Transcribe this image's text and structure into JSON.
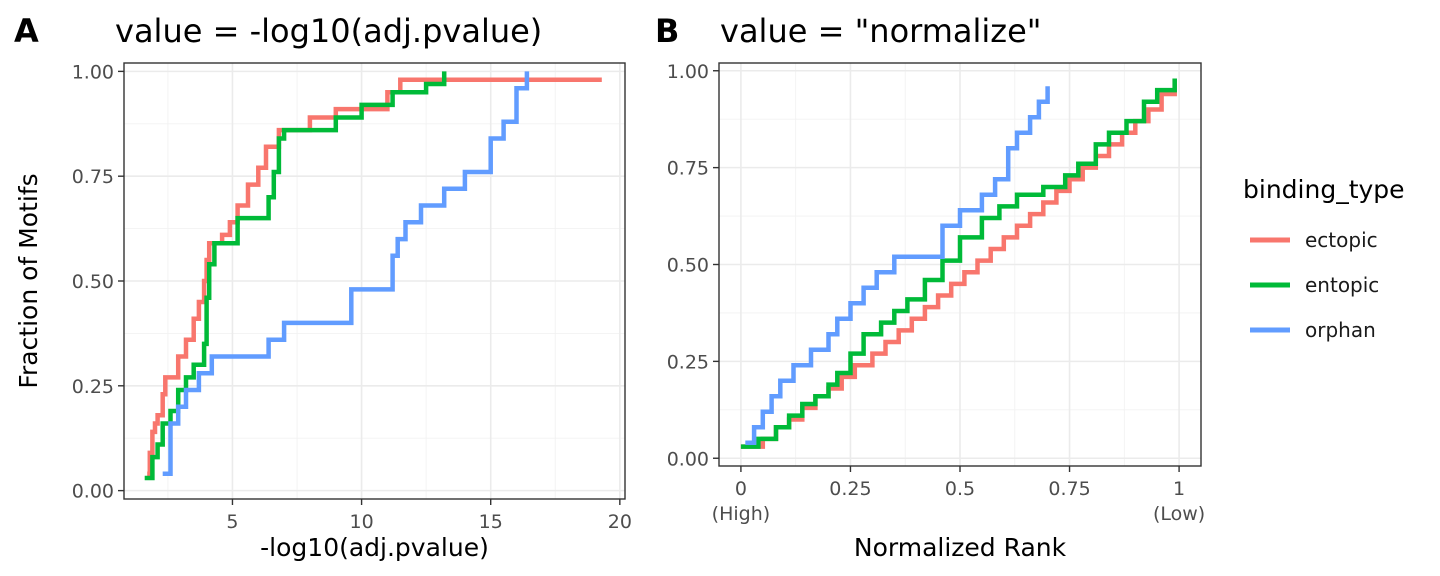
{
  "colors": {
    "ectopic": "#F8766D",
    "entopic": "#00BA38",
    "orphan": "#619CFF"
  },
  "legend": {
    "title": "binding_type",
    "items": [
      {
        "label": "ectopic",
        "color": "#F8766D"
      },
      {
        "label": "entopic",
        "color": "#00BA38"
      },
      {
        "label": "orphan",
        "color": "#619CFF"
      }
    ]
  },
  "chart_data": [
    {
      "type": "line",
      "tag": "A",
      "title": "value = -log10(adj.pvalue)",
      "xlabel": "-log10(adj.pvalue)",
      "ylabel": "Fraction of Motifs",
      "xlim": [
        0.8,
        20.2
      ],
      "ylim": [
        -0.02,
        1.02
      ],
      "x_ticks": [
        5,
        10,
        15,
        20
      ],
      "x_tick_labels": [
        "5",
        "10",
        "15",
        "20"
      ],
      "y_ticks": [
        0,
        0.25,
        0.5,
        0.75,
        1
      ],
      "y_tick_labels": [
        "0.00",
        "0.25",
        "0.50",
        "0.75",
        "1.00"
      ],
      "step": true,
      "grid": true,
      "series": [
        {
          "name": "ectopic",
          "x": [
            1.7,
            1.8,
            1.9,
            2.0,
            2.1,
            2.3,
            2.4,
            2.6,
            2.9,
            3.2,
            3.5,
            3.7,
            3.9,
            4.0,
            4.1,
            4.3,
            4.6,
            4.9,
            5.2,
            5.6,
            6.0,
            6.3,
            6.5,
            6.8,
            7.0,
            8.0,
            8.4,
            9.0,
            10.0,
            11.0,
            11.5,
            19.3
          ],
          "y": [
            0.04,
            0.09,
            0.14,
            0.16,
            0.18,
            0.23,
            0.27,
            0.27,
            0.32,
            0.36,
            0.41,
            0.45,
            0.5,
            0.55,
            0.59,
            0.59,
            0.61,
            0.64,
            0.68,
            0.73,
            0.77,
            0.82,
            0.82,
            0.86,
            0.86,
            0.89,
            0.89,
            0.91,
            0.91,
            0.95,
            0.98,
            0.98
          ]
        },
        {
          "name": "entopic",
          "x": [
            1.6,
            1.9,
            2.1,
            2.3,
            2.6,
            2.9,
            3.2,
            3.5,
            3.9,
            4.0,
            4.1,
            4.3,
            5.2,
            6.4,
            6.6,
            6.8,
            7.0,
            8.2,
            9.0,
            10.0,
            11.2,
            12.5,
            13.2
          ],
          "y": [
            0.03,
            0.08,
            0.11,
            0.16,
            0.19,
            0.24,
            0.27,
            0.3,
            0.35,
            0.46,
            0.54,
            0.59,
            0.65,
            0.7,
            0.76,
            0.84,
            0.86,
            0.86,
            0.89,
            0.92,
            0.95,
            0.97,
            1.0
          ]
        },
        {
          "name": "orphan",
          "x": [
            2.3,
            2.6,
            2.9,
            3.2,
            3.7,
            4.2,
            6.4,
            7.0,
            9.6,
            11.2,
            11.4,
            11.7,
            12.3,
            13.2,
            14.0,
            15.0,
            15.5,
            16.0,
            16.4
          ],
          "y": [
            0.04,
            0.16,
            0.2,
            0.24,
            0.28,
            0.32,
            0.36,
            0.4,
            0.48,
            0.56,
            0.6,
            0.64,
            0.68,
            0.72,
            0.76,
            0.84,
            0.88,
            0.96,
            1.0
          ]
        }
      ]
    },
    {
      "type": "line",
      "tag": "B",
      "title": "value = \"normalize\"",
      "xlabel": "Normalized Rank",
      "ylabel": "",
      "xlim": [
        -0.05,
        1.05
      ],
      "ylim": [
        -0.02,
        1.02
      ],
      "x_ticks": [
        0,
        0.25,
        0.5,
        0.75,
        1
      ],
      "x_tick_labels": [
        "0\n(High)",
        "0.25",
        "0.5",
        "0.75",
        "1\n(Low)"
      ],
      "y_ticks": [
        0,
        0.25,
        0.5,
        0.75,
        1
      ],
      "y_tick_labels": [
        "0.00",
        "0.25",
        "0.50",
        "0.75",
        "1.00"
      ],
      "step": true,
      "grid": true,
      "series": [
        {
          "name": "ectopic",
          "x": [
            0.0,
            0.05,
            0.08,
            0.11,
            0.14,
            0.17,
            0.2,
            0.23,
            0.26,
            0.3,
            0.33,
            0.36,
            0.39,
            0.42,
            0.45,
            0.48,
            0.51,
            0.54,
            0.57,
            0.6,
            0.63,
            0.66,
            0.69,
            0.72,
            0.75,
            0.78,
            0.81,
            0.84,
            0.87,
            0.9,
            0.93,
            0.96,
            0.99
          ],
          "y": [
            0.03,
            0.05,
            0.08,
            0.1,
            0.13,
            0.16,
            0.18,
            0.21,
            0.24,
            0.27,
            0.3,
            0.33,
            0.36,
            0.39,
            0.42,
            0.45,
            0.48,
            0.51,
            0.54,
            0.57,
            0.6,
            0.63,
            0.66,
            0.69,
            0.72,
            0.75,
            0.78,
            0.81,
            0.84,
            0.87,
            0.9,
            0.94,
            0.98
          ]
        },
        {
          "name": "entopic",
          "x": [
            0.0,
            0.04,
            0.08,
            0.11,
            0.14,
            0.17,
            0.2,
            0.22,
            0.25,
            0.28,
            0.32,
            0.35,
            0.38,
            0.42,
            0.46,
            0.5,
            0.55,
            0.59,
            0.63,
            0.69,
            0.74,
            0.77,
            0.81,
            0.84,
            0.88,
            0.92,
            0.95,
            0.99
          ],
          "y": [
            0.03,
            0.05,
            0.08,
            0.11,
            0.14,
            0.16,
            0.19,
            0.22,
            0.27,
            0.32,
            0.35,
            0.38,
            0.41,
            0.46,
            0.51,
            0.57,
            0.62,
            0.65,
            0.68,
            0.7,
            0.73,
            0.76,
            0.81,
            0.84,
            0.87,
            0.92,
            0.95,
            0.98
          ]
        },
        {
          "name": "orphan",
          "x": [
            0.01,
            0.03,
            0.05,
            0.07,
            0.09,
            0.12,
            0.16,
            0.2,
            0.22,
            0.25,
            0.28,
            0.31,
            0.35,
            0.46,
            0.5,
            0.55,
            0.58,
            0.61,
            0.63,
            0.66,
            0.68,
            0.7
          ],
          "y": [
            0.04,
            0.08,
            0.12,
            0.16,
            0.2,
            0.24,
            0.28,
            0.32,
            0.36,
            0.4,
            0.44,
            0.48,
            0.52,
            0.6,
            0.64,
            0.68,
            0.72,
            0.8,
            0.84,
            0.88,
            0.92,
            0.96
          ]
        }
      ]
    }
  ]
}
